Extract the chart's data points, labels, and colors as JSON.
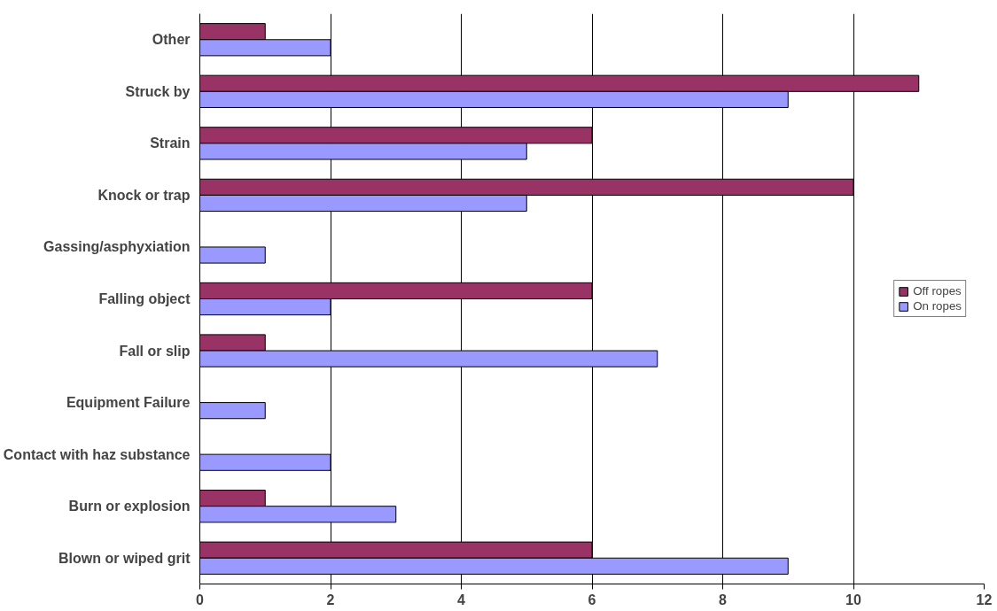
{
  "chart_data": {
    "type": "bar",
    "orientation": "horizontal",
    "categories": [
      "Other",
      "Struck by",
      "Strain",
      "Knock or trap",
      "Gassing/asphyxiation",
      "Falling object",
      "Fall or slip",
      "Equipment Failure",
      "Contact with haz substance",
      "Burn or explosion",
      "Blown or wiped grit"
    ],
    "series": [
      {
        "name": "Off ropes",
        "color": "#993366",
        "values": [
          1,
          11,
          6,
          10,
          null,
          6,
          1,
          null,
          null,
          1,
          6
        ]
      },
      {
        "name": "On ropes",
        "color": "#9999ff",
        "values": [
          2,
          9,
          5,
          5,
          1,
          2,
          7,
          1,
          2,
          3,
          9
        ]
      }
    ],
    "xlim": [
      0,
      12
    ],
    "xticks": [
      0,
      2,
      4,
      6,
      8,
      10,
      12
    ],
    "grid": "x",
    "legend": "right"
  }
}
